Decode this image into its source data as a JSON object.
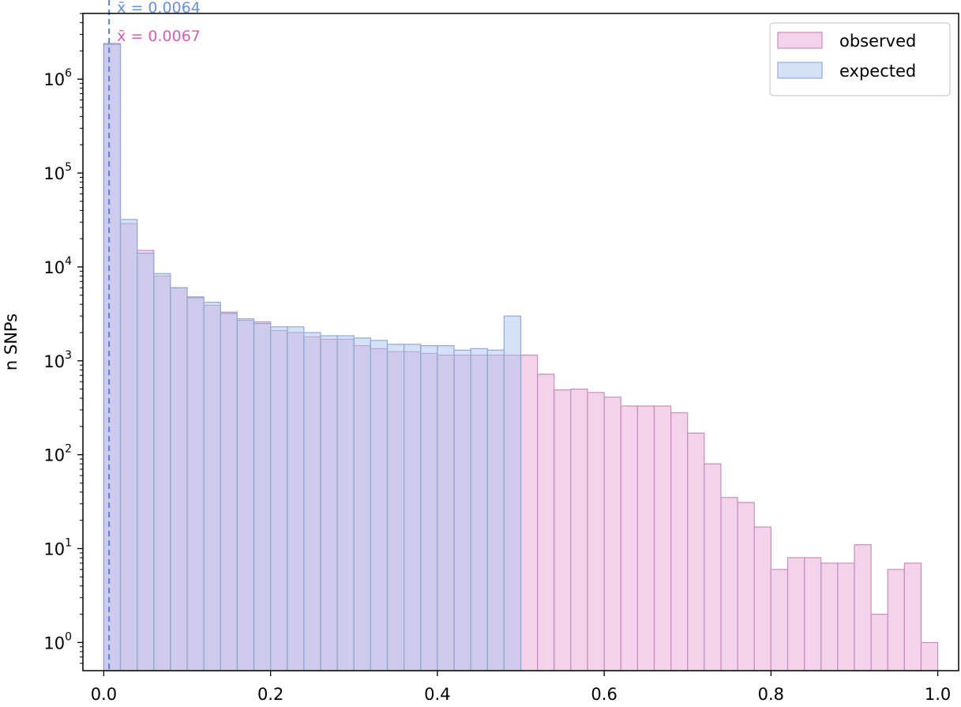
{
  "chart_data": {
    "type": "histogram",
    "xlabel": "",
    "ylabel": "n SNPs",
    "xlim": [
      -0.025,
      1.025
    ],
    "ylim_log10": [
      -0.3,
      6.7
    ],
    "yscale": "log",
    "grid": false,
    "legend_placement": "top-right",
    "bin_width": 0.02,
    "x_ticks": [
      "0.0",
      "0.2",
      "0.4",
      "0.6",
      "0.8",
      "1.0"
    ],
    "x_tick_values": [
      0,
      0.2,
      0.4,
      0.6,
      0.8,
      1.0
    ],
    "y_ticks": [
      {
        "base": "10",
        "exp": "0",
        "value": 1
      },
      {
        "base": "10",
        "exp": "1",
        "value": 10
      },
      {
        "base": "10",
        "exp": "2",
        "value": 100
      },
      {
        "base": "10",
        "exp": "3",
        "value": 1000
      },
      {
        "base": "10",
        "exp": "4",
        "value": 10000
      },
      {
        "base": "10",
        "exp": "5",
        "value": 100000
      },
      {
        "base": "10",
        "exp": "6",
        "value": 1000000
      }
    ],
    "series": [
      {
        "name": "observed",
        "color": "#e6a8d7",
        "bin_starts": [
          0.0,
          0.02,
          0.04,
          0.06,
          0.08,
          0.1,
          0.12,
          0.14,
          0.16,
          0.18,
          0.2,
          0.22,
          0.24,
          0.26,
          0.28,
          0.3,
          0.32,
          0.34,
          0.36,
          0.38,
          0.4,
          0.42,
          0.44,
          0.46,
          0.48,
          0.5,
          0.52,
          0.54,
          0.56,
          0.58,
          0.6,
          0.62,
          0.64,
          0.66,
          0.68,
          0.7,
          0.72,
          0.74,
          0.76,
          0.78,
          0.8,
          0.82,
          0.84,
          0.86,
          0.88,
          0.9,
          0.92,
          0.94,
          0.96,
          0.98
        ],
        "values": [
          2400000,
          29000,
          15000,
          8000,
          6000,
          4800,
          3900,
          3300,
          2700,
          2600,
          2100,
          2000,
          1800,
          1700,
          1700,
          1450,
          1350,
          1250,
          1250,
          1200,
          1150,
          1150,
          1150,
          1150,
          1150,
          1150,
          720,
          490,
          500,
          460,
          410,
          330,
          330,
          330,
          280,
          170,
          80,
          35,
          31,
          17,
          6,
          8,
          8,
          7,
          7,
          11,
          2,
          6,
          7,
          1
        ]
      },
      {
        "name": "expected",
        "color": "#a9c4ef",
        "bin_starts": [
          0.0,
          0.02,
          0.04,
          0.06,
          0.08,
          0.1,
          0.12,
          0.14,
          0.16,
          0.18,
          0.2,
          0.22,
          0.24,
          0.26,
          0.28,
          0.3,
          0.32,
          0.34,
          0.36,
          0.38,
          0.4,
          0.42,
          0.44,
          0.46,
          0.48
        ],
        "values": [
          2350000,
          32000,
          14000,
          8500,
          6000,
          4700,
          4200,
          3200,
          2800,
          2500,
          2300,
          2300,
          2000,
          1850,
          1850,
          1750,
          1650,
          1500,
          1500,
          1450,
          1450,
          1300,
          1350,
          1300,
          3000
        ]
      }
    ],
    "annotations": [
      {
        "text": "x̄ = 0.0064",
        "color": "#6a8fe0"
      },
      {
        "text": "x̄ = 0.0067",
        "color": "#d060b8"
      }
    ],
    "mean_line": {
      "x": 0.0064,
      "color": "#5b7fe0"
    }
  }
}
